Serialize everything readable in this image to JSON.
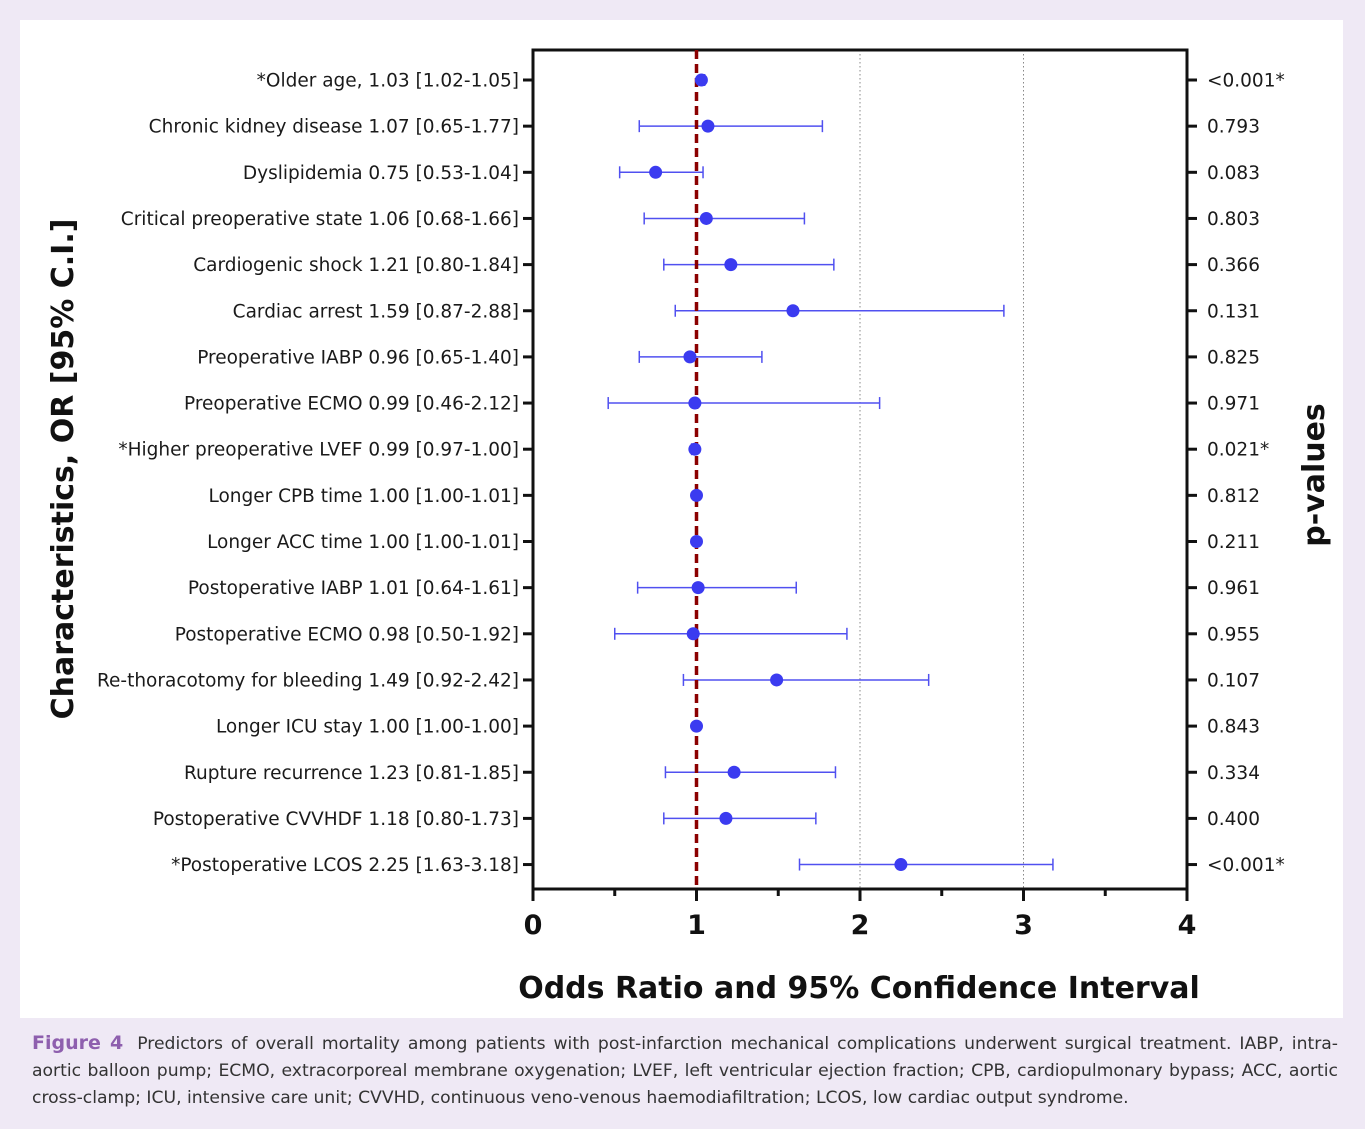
{
  "chart_data": {
    "type": "forest",
    "xlabel": "Odds Ratio and 95% Confidence Interval",
    "ylabel": "Characteristics, OR [95% C.I.]",
    "right_label": "p-values",
    "xlim": [
      0,
      4
    ],
    "xticks": [
      0,
      1,
      2,
      3,
      4
    ],
    "reference_line": 1,
    "dotted_gridlines": [
      2,
      3
    ],
    "colors": {
      "point": "#3b3bf0",
      "ci": "#5050f0",
      "reference": "#8b0000",
      "axis": "#111111"
    },
    "rows": [
      {
        "label": "*Older age, 1.03 [1.02-1.05]",
        "or": 1.03,
        "lo": 1.02,
        "hi": 1.05,
        "p": "<0.001*"
      },
      {
        "label": "Chronic kidney disease 1.07 [0.65-1.77]",
        "or": 1.07,
        "lo": 0.65,
        "hi": 1.77,
        "p": "0.793"
      },
      {
        "label": "Dyslipidemia 0.75 [0.53-1.04]",
        "or": 0.75,
        "lo": 0.53,
        "hi": 1.04,
        "p": "0.083"
      },
      {
        "label": "Critical preoperative state 1.06 [0.68-1.66]",
        "or": 1.06,
        "lo": 0.68,
        "hi": 1.66,
        "p": "0.803"
      },
      {
        "label": "Cardiogenic shock 1.21 [0.80-1.84]",
        "or": 1.21,
        "lo": 0.8,
        "hi": 1.84,
        "p": "0.366"
      },
      {
        "label": "Cardiac arrest 1.59 [0.87-2.88]",
        "or": 1.59,
        "lo": 0.87,
        "hi": 2.88,
        "p": "0.131"
      },
      {
        "label": "Preoperative IABP 0.96 [0.65-1.40]",
        "or": 0.96,
        "lo": 0.65,
        "hi": 1.4,
        "p": "0.825"
      },
      {
        "label": "Preoperative ECMO 0.99 [0.46-2.12]",
        "or": 0.99,
        "lo": 0.46,
        "hi": 2.12,
        "p": "0.971"
      },
      {
        "label": "*Higher preoperative LVEF 0.99 [0.97-1.00]",
        "or": 0.99,
        "lo": 0.97,
        "hi": 1.0,
        "p": "0.021*"
      },
      {
        "label": "Longer CPB time 1.00 [1.00-1.01]",
        "or": 1.0,
        "lo": 1.0,
        "hi": 1.01,
        "p": "0.812"
      },
      {
        "label": "Longer ACC time 1.00 [1.00-1.01]",
        "or": 1.0,
        "lo": 1.0,
        "hi": 1.01,
        "p": "0.211"
      },
      {
        "label": "Postoperative IABP 1.01 [0.64-1.61]",
        "or": 1.01,
        "lo": 0.64,
        "hi": 1.61,
        "p": "0.961"
      },
      {
        "label": "Postoperative ECMO 0.98 [0.50-1.92]",
        "or": 0.98,
        "lo": 0.5,
        "hi": 1.92,
        "p": "0.955"
      },
      {
        "label": "Re-thoracotomy for bleeding 1.49 [0.92-2.42]",
        "or": 1.49,
        "lo": 0.92,
        "hi": 2.42,
        "p": "0.107"
      },
      {
        "label": "Longer ICU stay 1.00 [1.00-1.00]",
        "or": 1.0,
        "lo": 1.0,
        "hi": 1.0,
        "p": "0.843"
      },
      {
        "label": "Rupture recurrence 1.23 [0.81-1.85]",
        "or": 1.23,
        "lo": 0.81,
        "hi": 1.85,
        "p": "0.334"
      },
      {
        "label": "Postoperative CVVHDF 1.18 [0.80-1.73]",
        "or": 1.18,
        "lo": 0.8,
        "hi": 1.73,
        "p": "0.400"
      },
      {
        "label": "*Postoperative LCOS 2.25 [1.63-3.18]",
        "or": 2.25,
        "lo": 1.63,
        "hi": 3.18,
        "p": "<0.001*"
      }
    ]
  },
  "caption": {
    "label": "Figure 4",
    "text": "Predictors of overall mortality among patients with post-infarction mechanical complications underwent surgical treatment. IABP, intra-aortic balloon pump; ECMO, extracorporeal membrane oxygenation; LVEF, left ventricular ejection fraction; CPB, cardiopulmonary bypass; ACC, aortic cross-clamp; ICU, intensive care unit; CVVHD, continuous veno-venous haemodiafiltration; LCOS, low cardiac output syndrome."
  }
}
